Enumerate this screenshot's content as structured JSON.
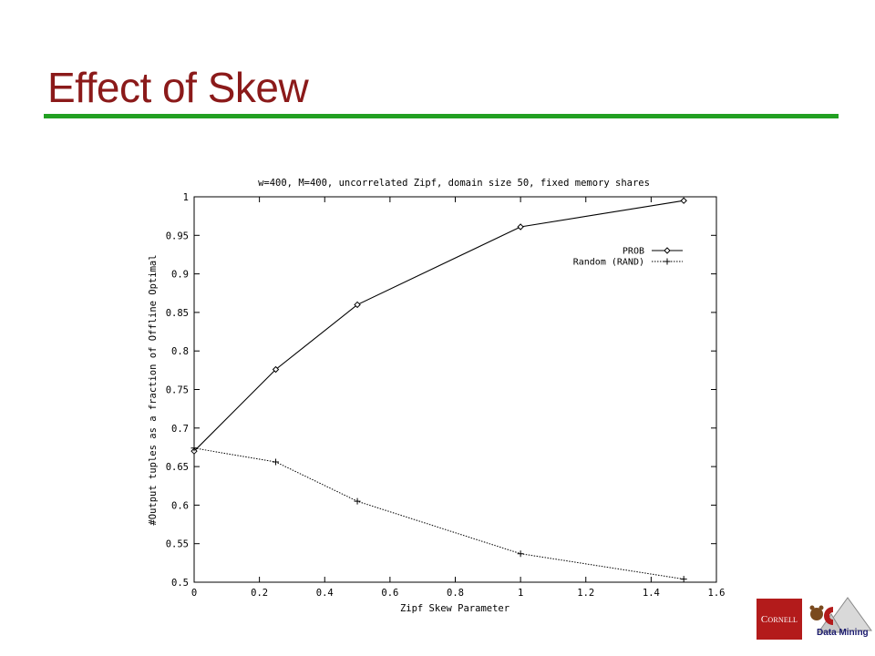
{
  "slide": {
    "title": "Effect of Skew",
    "logo_text": "Cornell",
    "logo_text2": "Data Mining"
  },
  "colors": {
    "title": "#8b1a1a",
    "rule": "#22a022",
    "logo": "#b31b1b"
  },
  "chart_data": {
    "type": "line",
    "title": "w=400, M=400, uncorrelated Zipf, domain size 50, fixed memory shares",
    "xlabel": "Zipf Skew Parameter",
    "ylabel": "#Output tuples as a fraction of Offline Optimal",
    "xlim": [
      0,
      1.6
    ],
    "ylim": [
      0.5,
      1
    ],
    "xticks": [
      "0",
      "0.2",
      "0.4",
      "0.6",
      "0.8",
      "1",
      "1.2",
      "1.4",
      "1.6"
    ],
    "yticks": [
      "0.5",
      "0.55",
      "0.6",
      "0.65",
      "0.7",
      "0.75",
      "0.8",
      "0.85",
      "0.9",
      "0.95",
      "1"
    ],
    "grid": false,
    "legend_position": "top-right",
    "series": [
      {
        "name": "PROB",
        "style": "solid",
        "marker": "diamond",
        "x": [
          0,
          0.25,
          0.5,
          1,
          1.5
        ],
        "y": [
          0.67,
          0.776,
          0.86,
          0.961,
          0.995
        ]
      },
      {
        "name": "Random (RAND)",
        "style": "dotted",
        "marker": "plus",
        "x": [
          0,
          0.25,
          0.5,
          1,
          1.5
        ],
        "y": [
          0.674,
          0.656,
          0.605,
          0.537,
          0.504
        ]
      }
    ]
  }
}
